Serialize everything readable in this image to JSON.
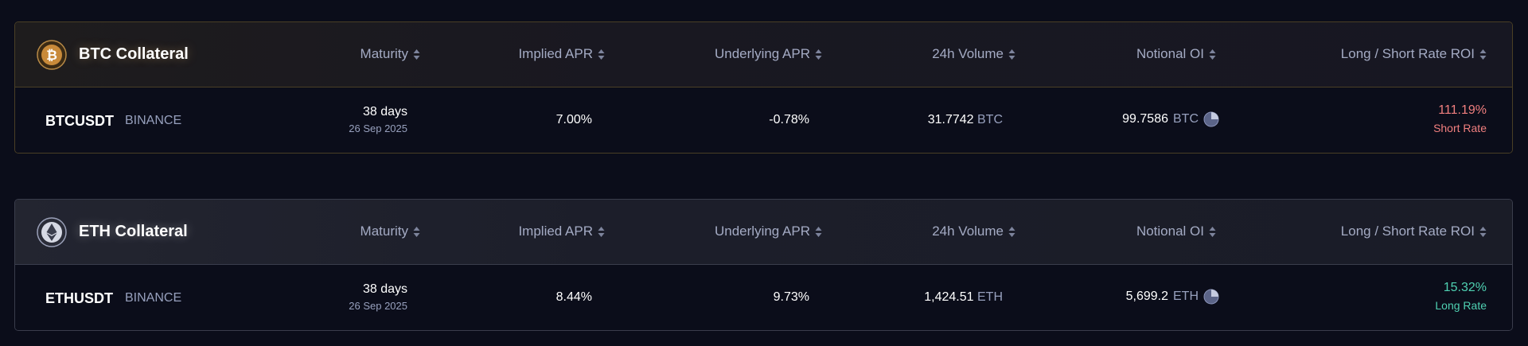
{
  "colors": {
    "background": "#0b0d1a",
    "btc_accent": "#f7931a",
    "short_rate": "#f17f7f",
    "long_rate": "#4fd1b2",
    "muted_text": "#97a0bd"
  },
  "columns": {
    "maturity": "Maturity",
    "implied_apr": "Implied APR",
    "underlying_apr": "Underlying APR",
    "volume_24h": "24h Volume",
    "notional_oi": "Notional OI",
    "roi": "Long / Short Rate ROI"
  },
  "groups": [
    {
      "title": "BTC Collateral",
      "icon": "bitcoin-icon",
      "row": {
        "symbol": "BTCUSDT",
        "exchange": "BINANCE",
        "maturity_days": "38 days",
        "maturity_date": "26 Sep 2025",
        "implied_apr": "7.00%",
        "underlying_apr": "-0.78%",
        "volume_value": "31.7742",
        "volume_unit": "BTC",
        "oi_value": "99.7586",
        "oi_unit": "BTC",
        "roi_value": "111.19%",
        "roi_label": "Short Rate"
      }
    },
    {
      "title": "ETH Collateral",
      "icon": "ethereum-icon",
      "row": {
        "symbol": "ETHUSDT",
        "exchange": "BINANCE",
        "maturity_days": "38 days",
        "maturity_date": "26 Sep 2025",
        "implied_apr": "8.44%",
        "underlying_apr": "9.73%",
        "volume_value": "1,424.51",
        "volume_unit": "ETH",
        "oi_value": "5,699.2",
        "oi_unit": "ETH",
        "roi_value": "15.32%",
        "roi_label": "Long Rate"
      }
    }
  ]
}
